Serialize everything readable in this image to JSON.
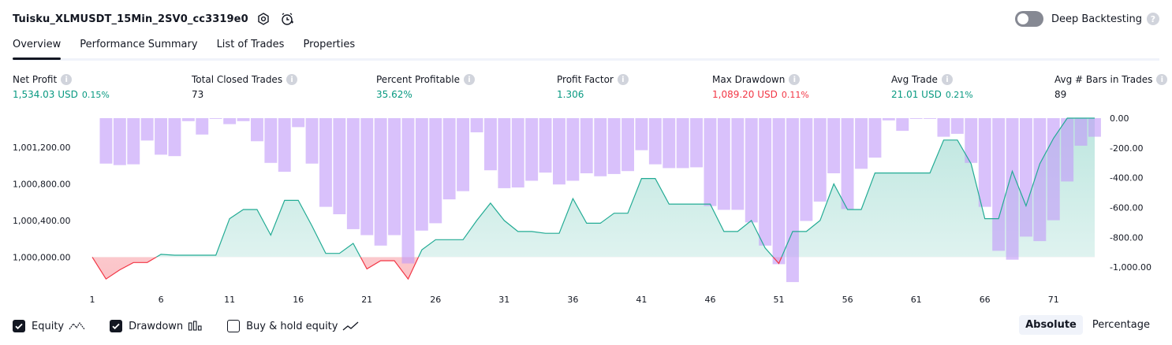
{
  "header": {
    "title": "Tuisku_XLMUSDT_15Min_2SV0_cc3319e0",
    "deep_backtesting_label": "Deep Backtesting",
    "deep_backtesting_on": false
  },
  "tabs": [
    {
      "label": "Overview",
      "active": true
    },
    {
      "label": "Performance Summary",
      "active": false
    },
    {
      "label": "List of Trades",
      "active": false
    },
    {
      "label": "Properties",
      "active": false
    }
  ],
  "metrics": [
    {
      "label": "Net Profit",
      "value": "1,534.03 USD",
      "pct": "0.15%",
      "color": "#089981"
    },
    {
      "label": "Total Closed Trades",
      "value": "73",
      "pct": "",
      "color": "#131722"
    },
    {
      "label": "Percent Profitable",
      "value": "35.62%",
      "pct": "",
      "color": "#089981"
    },
    {
      "label": "Profit Factor",
      "value": "1.306",
      "pct": "",
      "color": "#089981"
    },
    {
      "label": "Max Drawdown",
      "value": "1,089.20 USD",
      "pct": "0.11%",
      "color": "#f23645"
    },
    {
      "label": "Avg Trade",
      "value": "21.01 USD",
      "pct": "0.21%",
      "color": "#089981"
    },
    {
      "label": "Avg # Bars in Trades",
      "value": "89",
      "pct": "",
      "color": "#131722"
    }
  ],
  "legend": {
    "equity_label": "Equity",
    "equity_checked": true,
    "drawdown_label": "Drawdown",
    "drawdown_checked": true,
    "buyhold_label": "Buy & hold equity",
    "buyhold_checked": false
  },
  "modes": {
    "absolute_label": "Absolute",
    "percentage_label": "Percentage",
    "active": "absolute"
  },
  "colors": {
    "equity_pos": "#22ab94",
    "equity_neg": "#f23645",
    "drawdown": "#c29bf8",
    "positive": "#089981",
    "negative": "#f23645"
  },
  "chart_data": {
    "type": "area",
    "x_ticks": [
      1,
      6,
      11,
      16,
      21,
      26,
      31,
      36,
      41,
      46,
      51,
      56,
      61,
      66,
      71
    ],
    "left_axis": {
      "ticks": [
        "1,000,000.00",
        "1,000,400.00",
        "1,000,800.00",
        "1,001,200.00"
      ],
      "values": [
        1000000,
        1000400,
        1000800,
        1001200
      ],
      "ylim": [
        999710,
        1001520
      ]
    },
    "right_axis": {
      "ticks": [
        "0.00",
        "-200.00",
        "-400.00",
        "-600.00",
        "-800.00",
        "-1,000.00"
      ],
      "values": [
        0,
        -200,
        -400,
        -600,
        -800,
        -1000
      ],
      "ylim": [
        -1110,
        0
      ]
    },
    "series": [
      {
        "name": "Equity",
        "axis": "left",
        "x": [
          1,
          2,
          3,
          4,
          5,
          6,
          7,
          8,
          9,
          10,
          11,
          12,
          13,
          14,
          15,
          16,
          17,
          18,
          19,
          20,
          21,
          22,
          23,
          24,
          25,
          26,
          27,
          28,
          29,
          30,
          31,
          32,
          33,
          34,
          35,
          36,
          37,
          38,
          39,
          40,
          41,
          42,
          43,
          44,
          45,
          46,
          47,
          48,
          49,
          50,
          51,
          52,
          53,
          54,
          55,
          56,
          57,
          58,
          59,
          60,
          61,
          62,
          63,
          64,
          65,
          66,
          67,
          68,
          69,
          70,
          71,
          72,
          73,
          74
        ],
        "values": [
          1000000,
          999760,
          999860,
          999940,
          999940,
          1000030,
          1000020,
          1000020,
          1000020,
          1000020,
          1000420,
          1000520,
          1000520,
          1000240,
          1000620,
          1000620,
          1000340,
          1000040,
          1000040,
          1000150,
          999870,
          999960,
          999960,
          999760,
          1000080,
          1000190,
          1000190,
          1000190,
          1000400,
          1000590,
          1000400,
          1000280,
          1000280,
          1000260,
          1000260,
          1000640,
          1000370,
          1000370,
          1000480,
          1000480,
          1000860,
          1000860,
          1000580,
          1000580,
          1000580,
          1000580,
          1000280,
          1000280,
          1000400,
          1000100,
          999930,
          1000280,
          1000280,
          1000400,
          1000800,
          1000520,
          1000520,
          1000920,
          1000920,
          1000920,
          1000920,
          1000920,
          1001280,
          1001280,
          1001020,
          1000420,
          1000420,
          1000940,
          1000560,
          1001020,
          1001300,
          1001520,
          1001520,
          1001520
        ]
      },
      {
        "name": "Drawdown",
        "axis": "right",
        "x": [
          1,
          2,
          3,
          4,
          5,
          6,
          7,
          8,
          9,
          10,
          11,
          12,
          13,
          14,
          15,
          16,
          17,
          18,
          19,
          20,
          21,
          22,
          23,
          24,
          25,
          26,
          27,
          28,
          29,
          30,
          31,
          32,
          33,
          34,
          35,
          36,
          37,
          38,
          39,
          40,
          41,
          42,
          43,
          44,
          45,
          46,
          47,
          48,
          49,
          50,
          51,
          52,
          53,
          54,
          55,
          56,
          57,
          58,
          59,
          60,
          61,
          62,
          63,
          64,
          65,
          66,
          67,
          68,
          69,
          70,
          71,
          72,
          73,
          74
        ],
        "values": [
          0,
          -305,
          -315,
          -310,
          -150,
          -245,
          -255,
          -20,
          -110,
          -5,
          -40,
          -20,
          -155,
          -300,
          -360,
          -60,
          -305,
          -595,
          -645,
          -745,
          -785,
          -855,
          -785,
          -975,
          -755,
          -705,
          -545,
          -490,
          -95,
          -350,
          -470,
          -465,
          -420,
          -365,
          -445,
          -420,
          -370,
          -390,
          -375,
          -355,
          -215,
          -310,
          -335,
          -335,
          -330,
          -590,
          -615,
          -615,
          -700,
          -855,
          -980,
          -1100,
          -690,
          -560,
          -370,
          -610,
          -340,
          -265,
          -15,
          -85,
          -5,
          -5,
          -125,
          -105,
          -300,
          -595,
          -890,
          -950,
          -795,
          -825,
          -685,
          -425,
          -185,
          -125
        ]
      }
    ]
  }
}
